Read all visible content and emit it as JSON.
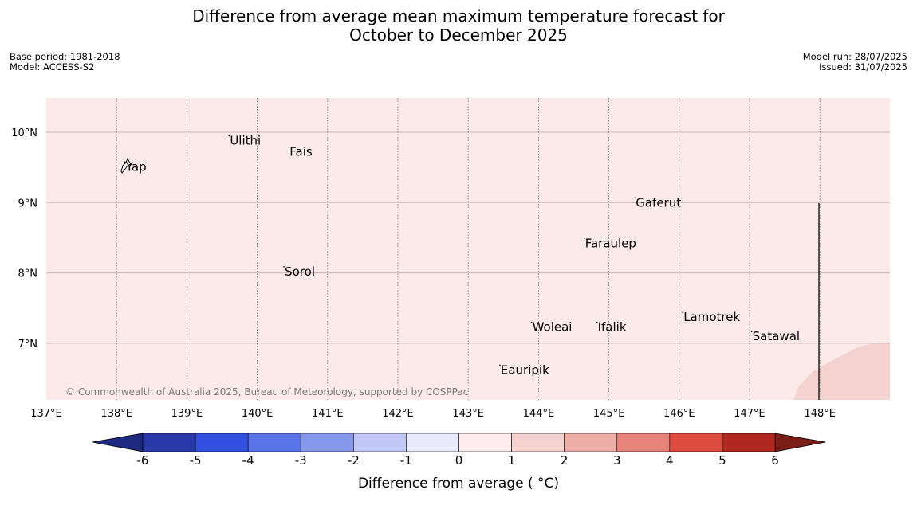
{
  "title": {
    "line1": "Difference from average mean maximum temperature forecast for",
    "line2": "October to December 2025"
  },
  "meta_left": {
    "base_period": "Base period: 1981-2018",
    "model": "Model: ACCESS-S2"
  },
  "meta_right": {
    "model_run": "Model run: 28/07/2025",
    "issued": "Issued: 31/07/2025"
  },
  "copyright": "© Commonwealth of Australia 2025, Bureau of Meteorology, supported by COSPPac",
  "map": {
    "extent": {
      "lon_min": 137,
      "lon_max": 149,
      "lat_min": 6.2,
      "lat_max": 10.5
    },
    "lon_ticks": [
      {
        "value": 137,
        "label": "137°E"
      },
      {
        "value": 138,
        "label": "138°E"
      },
      {
        "value": 139,
        "label": "139°E"
      },
      {
        "value": 140,
        "label": "140°E"
      },
      {
        "value": 141,
        "label": "141°E"
      },
      {
        "value": 142,
        "label": "142°E"
      },
      {
        "value": 143,
        "label": "143°E"
      },
      {
        "value": 144,
        "label": "144°E"
      },
      {
        "value": 145,
        "label": "145°E"
      },
      {
        "value": 146,
        "label": "146°E"
      },
      {
        "value": 147,
        "label": "147°E"
      },
      {
        "value": 148,
        "label": "148°E"
      }
    ],
    "lat_ticks": [
      {
        "value": 10,
        "label": "10°N"
      },
      {
        "value": 9,
        "label": "9°N"
      },
      {
        "value": 8,
        "label": "8°N"
      },
      {
        "value": 7,
        "label": "7°N"
      }
    ],
    "anomaly_fill": "#fbeae8",
    "anomaly_fill_stronger": "#f3d2d0",
    "places": [
      {
        "name": "Yap",
        "lon": 138.12,
        "lat": 9.51
      },
      {
        "name": "Ulithi",
        "lon": 139.6,
        "lat": 9.88
      },
      {
        "name": "Fais",
        "lon": 140.45,
        "lat": 9.72
      },
      {
        "name": "Gaferut",
        "lon": 145.37,
        "lat": 9.0
      },
      {
        "name": "Faraulep",
        "lon": 144.65,
        "lat": 8.42
      },
      {
        "name": "Sorol",
        "lon": 140.38,
        "lat": 8.02
      },
      {
        "name": "Lamotrek",
        "lon": 146.05,
        "lat": 7.37
      },
      {
        "name": "Woleai",
        "lon": 143.9,
        "lat": 7.23
      },
      {
        "name": "Ifalik",
        "lon": 144.83,
        "lat": 7.23
      },
      {
        "name": "Satawal",
        "lon": 147.03,
        "lat": 7.1
      },
      {
        "name": "Eauripik",
        "lon": 143.45,
        "lat": 6.62
      }
    ]
  },
  "colorbar": {
    "label": "Difference from average ( °C)",
    "ticks": [
      "-6",
      "-5",
      "-4",
      "-3",
      "-2",
      "-1",
      "0",
      "1",
      "2",
      "3",
      "4",
      "5",
      "6"
    ],
    "colors": [
      "#2838a8",
      "#3150e0",
      "#5a73e6",
      "#8697ec",
      "#c1c8f5",
      "#e8ebfb",
      "#fdeaea",
      "#f4d2d0",
      "#eeaea8",
      "#e8837c",
      "#dd4a3e",
      "#b0271f"
    ],
    "under_color": "#1e2a80",
    "over_color": "#7b1c17"
  }
}
